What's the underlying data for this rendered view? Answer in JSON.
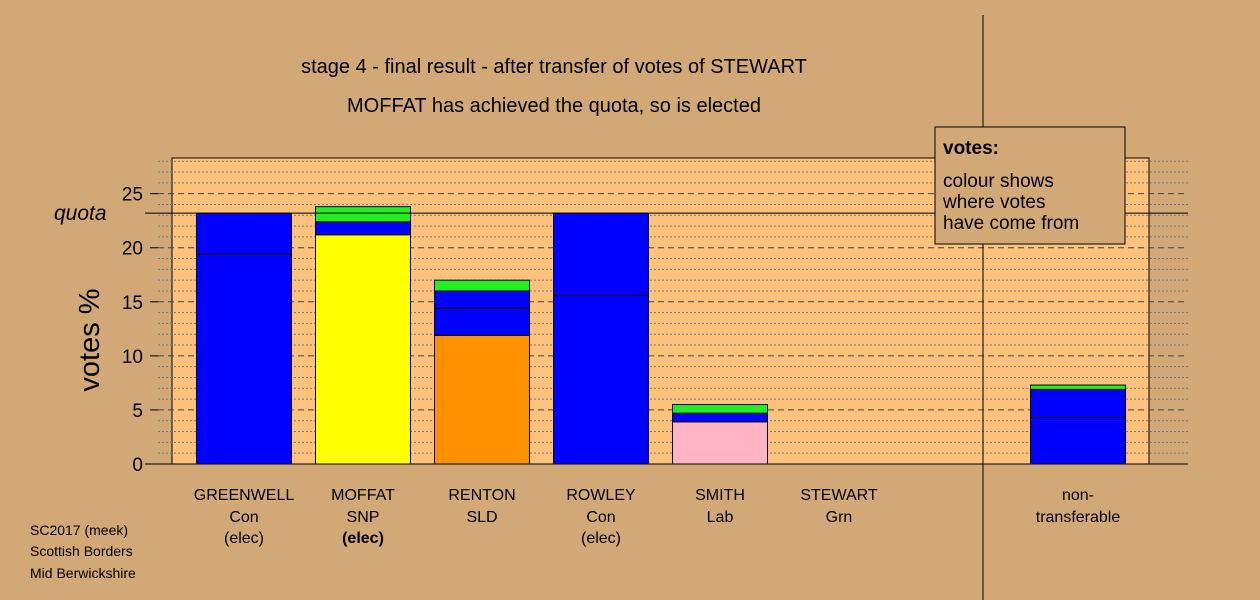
{
  "chart_data": {
    "type": "bar",
    "title": "stage 4 - final result - after transfer of votes of STEWART",
    "subtitle": "MOFFAT has achieved the quota, so is elected",
    "ylabel": "votes %",
    "ylim": [
      0,
      28.3
    ],
    "yticks": [
      "0",
      "5",
      "10",
      "15",
      "20",
      "25"
    ],
    "quota": {
      "label": "quota",
      "value": 23.2
    },
    "candidates": [
      {
        "name": "GREENWELL",
        "party": "Con",
        "status": "(elec)",
        "status_bold": false,
        "segments": [
          {
            "color": "#0000ff",
            "from": 0,
            "to": 23.2,
            "lines": [
              19.4
            ]
          }
        ]
      },
      {
        "name": "MOFFAT",
        "party": "SNP",
        "status": "(elec)",
        "status_bold": true,
        "segments": [
          {
            "color": "#ffff00",
            "from": 0,
            "to": 21.2
          },
          {
            "color": "#0000ff",
            "from": 21.2,
            "to": 22.4
          },
          {
            "color": "#22ee22",
            "from": 22.4,
            "to": 23.8
          }
        ]
      },
      {
        "name": "RENTON",
        "party": "SLD",
        "status": "",
        "status_bold": false,
        "segments": [
          {
            "color": "#ff9000",
            "from": 0,
            "to": 11.9
          },
          {
            "color": "#0000ff",
            "from": 11.9,
            "to": 16.0,
            "lines": [
              14.4
            ]
          },
          {
            "color": "#22ee22",
            "from": 16.0,
            "to": 17.0
          }
        ]
      },
      {
        "name": "ROWLEY",
        "party": "Con",
        "status": "(elec)",
        "status_bold": false,
        "segments": [
          {
            "color": "#0000ff",
            "from": 0,
            "to": 23.2,
            "lines": [
              15.6
            ]
          }
        ]
      },
      {
        "name": "SMITH",
        "party": "Lab",
        "status": "",
        "status_bold": false,
        "segments": [
          {
            "color": "#ffb3c4",
            "from": 0,
            "to": 3.9
          },
          {
            "color": "#0000ff",
            "from": 3.9,
            "to": 4.7
          },
          {
            "color": "#22ee22",
            "from": 4.7,
            "to": 5.5
          }
        ]
      },
      {
        "name": "STEWART",
        "party": "Grn",
        "status": "",
        "status_bold": false,
        "segments": []
      }
    ],
    "nontransferable": {
      "label_line1": "non-",
      "label_line2": "transferable",
      "segments": [
        {
          "color": "#0000ff",
          "from": 0,
          "to": 6.9,
          "lines": [
            4.3
          ]
        },
        {
          "color": "#22ee22",
          "from": 6.9,
          "to": 7.3
        }
      ]
    },
    "legend": {
      "title": "votes:",
      "line1": "colour shows",
      "line2": "where votes",
      "line3": "have come from"
    },
    "footer": {
      "line1": "SC2017 (meek)",
      "line2": "Scottish Borders",
      "line3": "Mid Berwickshire"
    }
  },
  "colors": {
    "background": "#d2a877",
    "plot_area": "#ffc27d",
    "grid": "#555555"
  }
}
